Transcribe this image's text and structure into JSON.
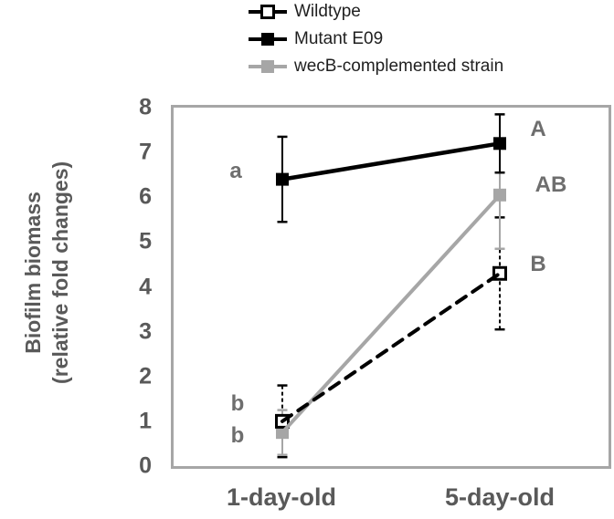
{
  "colors": {
    "black_series": "#000000",
    "gray_series": "#a6a6a6",
    "frame_gray": "#a6a6a6",
    "axis_text_gray": "#595959",
    "letter_gray": "#6e6e6e",
    "legend_text": "#1f1f1f"
  },
  "chart_data": {
    "type": "line",
    "categories": [
      "1-day-old",
      "5-day-old"
    ],
    "title": "",
    "xlabel": "",
    "ylabel_line1": "Biofilm biomass",
    "ylabel_line2": "(relative fold changes)",
    "ylim": [
      0,
      8
    ],
    "yticks": [
      0,
      1,
      2,
      3,
      4,
      5,
      6,
      7,
      8
    ],
    "grid": false,
    "legend_position": "top",
    "series": [
      {
        "name": "Wildtype",
        "values": [
          1.0,
          4.3
        ],
        "errors": [
          0.8,
          1.25
        ],
        "color": "#000000",
        "line_style": "dashed",
        "marker": "open-square",
        "sig_labels": [
          "b",
          "B"
        ]
      },
      {
        "name": "Mutant E09",
        "values": [
          6.4,
          7.2
        ],
        "errors": [
          0.95,
          0.65
        ],
        "color": "#000000",
        "line_style": "solid",
        "marker": "filled-square",
        "sig_labels": [
          "a",
          "A"
        ]
      },
      {
        "name": "wecB-complemented strain",
        "values": [
          0.75,
          6.05
        ],
        "errors": [
          0.5,
          1.2
        ],
        "color": "#a6a6a6",
        "line_style": "solid",
        "marker": "filled-square",
        "sig_labels": [
          "b",
          "AB"
        ]
      }
    ],
    "annotations": [
      "a",
      "b",
      "b",
      "A",
      "AB",
      "B"
    ]
  }
}
